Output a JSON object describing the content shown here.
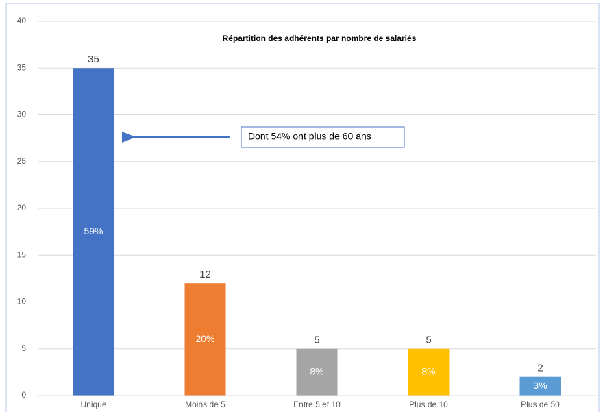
{
  "chart_data": {
    "type": "bar",
    "title": "Répartition des adhérents par nombre de salariés",
    "categories": [
      "Unique",
      "Moins de 5",
      "Entre 5 et 10",
      "Plus de 10",
      "Plus de 50"
    ],
    "values": [
      35,
      12,
      5,
      5,
      2
    ],
    "colors": [
      "#4472c4",
      "#ed7d31",
      "#a5a5a5",
      "#ffc000",
      "#5b9bd5"
    ],
    "percent_labels": [
      "59%",
      "20%",
      "8%",
      "8%",
      "3%"
    ],
    "annotation": "Dont 54% ont plus de 60 ans",
    "ylim": [
      0,
      40
    ],
    "yticks": [
      0,
      5,
      10,
      15,
      20,
      25,
      30,
      35,
      40
    ],
    "grid": true
  }
}
